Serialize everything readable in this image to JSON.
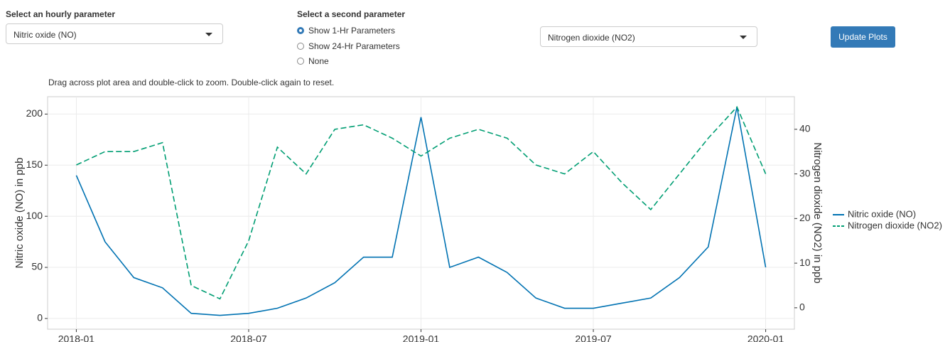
{
  "controls": {
    "param1_label": "Select an hourly parameter",
    "param1_value": "Nitric oxide (NO)",
    "param2_label": "Select a second parameter",
    "radio_options": [
      "Show 1-Hr Parameters",
      "Show 24-Hr Parameters",
      "None"
    ],
    "radio_selected": 0,
    "param2_value": "Nitrogen dioxide (NO2)",
    "button": "Update Plots"
  },
  "hint": "Drag across plot area and double-click to zoom. Double-click again to reset.",
  "chart_data": {
    "type": "line",
    "ylabel": "Nitric oxide (NO) in ppb",
    "y2label": "Nitrogen dioxide (NO2) in ppb",
    "x": [
      "2018-01",
      "2018-02",
      "2018-03",
      "2018-04",
      "2018-05",
      "2018-06",
      "2018-07",
      "2018-08",
      "2018-09",
      "2018-10",
      "2018-11",
      "2018-12",
      "2019-01",
      "2019-02",
      "2019-03",
      "2019-04",
      "2019-05",
      "2019-06",
      "2019-07",
      "2019-08",
      "2019-09",
      "2019-10",
      "2019-11",
      "2019-12",
      "2020-01"
    ],
    "series": [
      {
        "name": "Nitric oxide (NO)",
        "color": "#0072b2",
        "dash": false,
        "values": [
          140,
          75,
          40,
          30,
          5,
          3,
          5,
          10,
          20,
          35,
          60,
          60,
          197,
          50,
          60,
          45,
          20,
          10,
          10,
          15,
          20,
          40,
          70,
          207,
          50
        ]
      },
      {
        "name": "Nitrogen dioxide (NO2)",
        "color": "#009e73",
        "dash": true,
        "axis": "y2",
        "values": [
          32,
          35,
          35,
          37,
          5,
          2,
          15,
          36,
          30,
          40,
          41,
          38,
          34,
          38,
          40,
          38,
          32,
          30,
          35,
          28,
          22,
          30,
          38,
          45,
          30
        ]
      }
    ],
    "xlim": [
      "2017-12",
      "2020-02"
    ],
    "xticks": [
      "2018-01",
      "2018-07",
      "2019-01",
      "2019-07",
      "2020-01"
    ],
    "ylim": [
      -10.5,
      217
    ],
    "yticks": [
      0,
      50,
      100,
      150,
      200
    ],
    "y2lim": [
      -4.8,
      47.3
    ],
    "y2ticks": [
      0,
      10,
      20,
      30,
      40
    ],
    "grid": true,
    "legend": "right"
  }
}
